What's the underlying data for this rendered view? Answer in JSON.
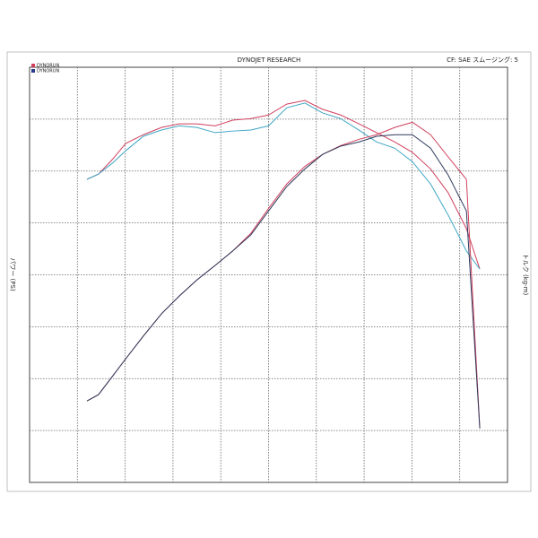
{
  "chart_data": {
    "type": "line",
    "title": "DYNOJET RESEARCH",
    "subtitle": "CF: SAE  スムージング: 5",
    "y_label": "パワー (PS)",
    "y2_label": "トルク (kg-m)",
    "legend": [
      {
        "name": "DYNORUN",
        "color": "#d0405e"
      },
      {
        "name": "DYNORUN",
        "color": "#2e3a8c"
      }
    ],
    "xlim": [
      0,
      10
    ],
    "ylim": [
      0,
      8
    ],
    "grid": true,
    "x": [
      1.2,
      1.44,
      1.73,
      2.01,
      2.38,
      2.76,
      3.13,
      3.5,
      3.88,
      4.25,
      4.63,
      5.0,
      5.38,
      5.76,
      6.13,
      6.51,
      6.89,
      7.26,
      7.64,
      8.01,
      8.39,
      8.76,
      9.14,
      9.42
    ],
    "series": [
      {
        "color": "#d0405e",
        "values": [
          5.84,
          5.94,
          6.22,
          6.53,
          6.7,
          6.84,
          6.91,
          6.91,
          6.87,
          6.98,
          7.01,
          7.08,
          7.29,
          7.36,
          7.19,
          7.08,
          6.91,
          6.74,
          6.56,
          6.36,
          6.04,
          5.58,
          4.89,
          4.11
        ]
      },
      {
        "color": "#3fa6c4",
        "values": [
          5.84,
          5.94,
          6.15,
          6.39,
          6.67,
          6.79,
          6.87,
          6.84,
          6.74,
          6.77,
          6.79,
          6.87,
          7.22,
          7.31,
          7.12,
          7.01,
          6.79,
          6.56,
          6.44,
          6.18,
          5.75,
          5.15,
          4.46,
          4.11
        ]
      },
      {
        "color": "#d0405e",
        "values": [
          1.57,
          1.69,
          2.04,
          2.38,
          2.82,
          3.25,
          3.59,
          3.9,
          4.18,
          4.46,
          4.8,
          5.28,
          5.75,
          6.09,
          6.32,
          6.49,
          6.61,
          6.7,
          6.84,
          6.94,
          6.7,
          6.27,
          5.84,
          1.04
        ]
      },
      {
        "color": "#2e3a5c",
        "values": [
          1.57,
          1.69,
          2.04,
          2.38,
          2.82,
          3.25,
          3.59,
          3.9,
          4.18,
          4.46,
          4.77,
          5.23,
          5.7,
          6.04,
          6.32,
          6.48,
          6.56,
          6.67,
          6.7,
          6.7,
          6.44,
          5.92,
          5.23,
          1.04
        ]
      }
    ]
  }
}
